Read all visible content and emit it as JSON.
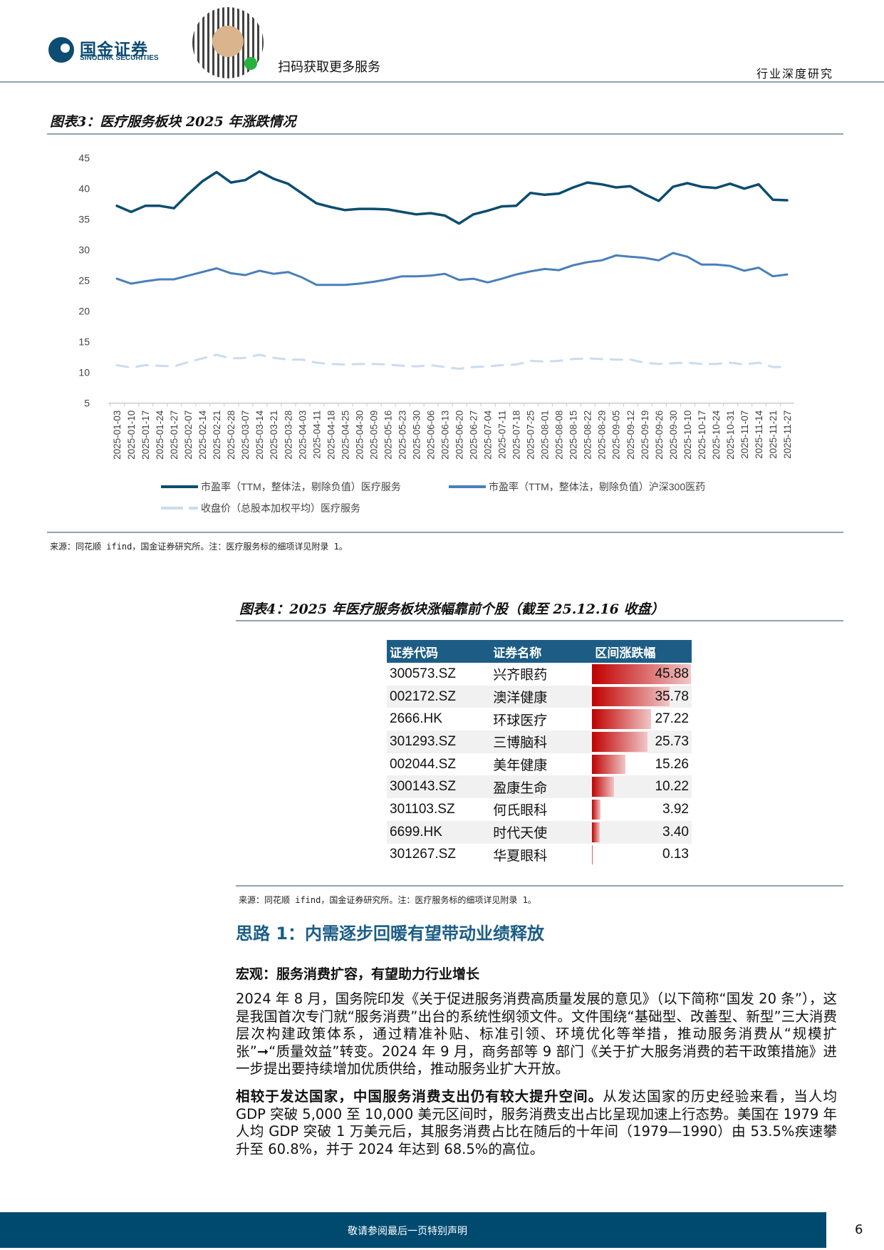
{
  "header": {
    "logo_cn": "国金证券",
    "logo_en": "SINOLINK SECURITIES",
    "scan_text": "扫码获取更多服务",
    "doc_type": "行业深度研究"
  },
  "figure3": {
    "title": "图表3：医疗服务板块 2025 年涨跌情况",
    "source": "来源：同花顺 ifind，国金证券研究所。注：医疗服务标的细项详见附录 1。",
    "chart_data": {
      "type": "line",
      "title": "",
      "ylim": [
        5,
        45
      ],
      "yticks": [
        5,
        10,
        15,
        20,
        25,
        30,
        35,
        40,
        45
      ],
      "legend": "bottom",
      "grid": false,
      "x": [
        "2025-01-03",
        "2025-01-10",
        "2025-01-17",
        "2025-01-24",
        "2025-01-27",
        "2025-02-07",
        "2025-02-14",
        "2025-02-21",
        "2025-02-28",
        "2025-03-07",
        "2025-03-14",
        "2025-03-21",
        "2025-03-28",
        "2025-04-03",
        "2025-04-11",
        "2025-04-18",
        "2025-04-25",
        "2025-04-30",
        "2025-05-09",
        "2025-05-16",
        "2025-05-23",
        "2025-05-30",
        "2025-06-06",
        "2025-06-13",
        "2025-06-20",
        "2025-06-27",
        "2025-07-04",
        "2025-07-11",
        "2025-07-18",
        "2025-07-25",
        "2025-08-01",
        "2025-08-08",
        "2025-08-15",
        "2025-08-22",
        "2025-08-29",
        "2025-09-05",
        "2025-09-12",
        "2025-09-19",
        "2025-09-26",
        "2025-09-30",
        "2025-10-10",
        "2025-10-17",
        "2025-10-24",
        "2025-10-31",
        "2025-11-07",
        "2025-11-14",
        "2025-11-21",
        "2025-11-27"
      ],
      "series": [
        {
          "name": "市盈率（TTM，整体法，剔除负值）医疗服务",
          "color": "#0b4d70",
          "dash": false,
          "values": [
            37.2,
            36.2,
            37.2,
            37.2,
            36.8,
            39.1,
            41.2,
            42.7,
            41.0,
            41.4,
            42.8,
            41.6,
            40.8,
            39.2,
            37.6,
            37.0,
            36.5,
            36.7,
            36.7,
            36.6,
            36.2,
            35.8,
            36.0,
            35.6,
            34.3,
            35.8,
            36.4,
            37.1,
            37.2,
            39.3,
            39.0,
            39.2,
            40.2,
            41.0,
            40.7,
            40.2,
            40.4,
            39.1,
            38.0,
            40.3,
            40.9,
            40.3,
            40.1,
            40.8,
            40.0,
            40.7,
            38.2,
            38.1
          ]
        },
        {
          "name": "市盈率（TTM，整体法，剔除负值）沪深300医药",
          "color": "#4a7fba",
          "dash": false,
          "values": [
            25.3,
            24.5,
            24.9,
            25.2,
            25.2,
            25.8,
            26.4,
            27.0,
            26.2,
            25.9,
            26.6,
            26.1,
            26.4,
            25.5,
            24.3,
            24.3,
            24.3,
            24.5,
            24.8,
            25.2,
            25.7,
            25.7,
            25.8,
            26.1,
            25.1,
            25.3,
            24.7,
            25.3,
            26.0,
            26.5,
            26.9,
            26.7,
            27.5,
            28.0,
            28.3,
            29.1,
            28.9,
            28.7,
            28.3,
            29.5,
            28.9,
            27.6,
            27.6,
            27.4,
            26.6,
            27.1,
            25.7,
            26.0
          ]
        },
        {
          "name": "收盘价（总股本加权平均）医疗服务",
          "color": "#cadcf0",
          "dash": true,
          "values": [
            11.2,
            10.8,
            11.2,
            11.1,
            11.0,
            11.7,
            12.3,
            12.9,
            12.3,
            12.4,
            12.9,
            12.4,
            12.1,
            12.1,
            11.6,
            11.4,
            11.3,
            11.4,
            11.4,
            11.3,
            11.1,
            11.0,
            11.2,
            10.9,
            10.6,
            10.9,
            11.0,
            11.2,
            11.3,
            11.9,
            11.8,
            11.9,
            12.2,
            12.3,
            12.2,
            12.1,
            12.1,
            11.6,
            11.4,
            11.5,
            11.6,
            11.4,
            11.4,
            11.6,
            11.3,
            11.6,
            10.9,
            10.9
          ]
        }
      ]
    }
  },
  "figure4": {
    "title": "图表4：2025 年医疗服务板块涨幅靠前个股（截至 25.12.16 收盘）",
    "columns": [
      "证券代码",
      "证券名称",
      "区间涨跌幅"
    ],
    "bar_color": "#c00000",
    "rows": [
      {
        "code": "300573.SZ",
        "name": "兴齐眼药",
        "change": 45.88,
        "change_text": "45.88"
      },
      {
        "code": "002172.SZ",
        "name": "澳洋健康",
        "change": 35.78,
        "change_text": "35.78"
      },
      {
        "code": "2666.HK",
        "name": "环球医疗",
        "change": 27.22,
        "change_text": "27.22"
      },
      {
        "code": "301293.SZ",
        "name": "三博脑科",
        "change": 25.73,
        "change_text": "25.73"
      },
      {
        "code": "002044.SZ",
        "name": "美年健康",
        "change": 15.26,
        "change_text": "15.26"
      },
      {
        "code": "300143.SZ",
        "name": "盈康生命",
        "change": 10.22,
        "change_text": "10.22"
      },
      {
        "code": "301103.SZ",
        "name": "何氏眼科",
        "change": 3.92,
        "change_text": "3.92"
      },
      {
        "code": "6699.HK",
        "name": "时代天使",
        "change": 3.4,
        "change_text": "3.40"
      },
      {
        "code": "301267.SZ",
        "name": "华夏眼科",
        "change": 0.13,
        "change_text": "0.13"
      }
    ],
    "source": "来源：同花顺 ifind，国金证券研究所。注：医疗服务标的细项详见附录 1。"
  },
  "section": {
    "heading": "思路 1：内需逐步回暖有望带动业绩释放",
    "subheading": "宏观：服务消费扩容，有望助力行业增长",
    "para1": "2024 年 8 月，国务院印发《关于促进服务消费高质量发展的意见》（以下简称“国发 20 条”），这是我国首次专门就“服务消费”出台的系统性纲领文件。文件围绕“基础型、改善型、新型”三大消费层次构建政策体系，通过精准补贴、标准引领、环境优化等举措，推动服务消费从“规模扩张”➞“质量效益”转变。2024 年 9 月，商务部等 9 部门《关于扩大服务消费的若干政策措施》进一步提出要持续增加优质供给，推动服务业扩大开放。",
    "para2_bold": "相较于发达国家，中国服务消费支出仍有较大提升空间。",
    "para2_rest": "从发达国家的历史经验来看，当人均 GDP 突破 5,000 至 10,000 美元区间时，服务消费支出占比呈现加速上行态势。美国在 1979 年人均 GDP 突破 1 万美元后，其服务消费占比在随后的十年间（1979—1990）由 53.5%疾速攀升至 60.8%，并于 2024 年达到 68.5%的高位。"
  },
  "footer": {
    "notice": "敬请参阅最后一页特别声明",
    "page": "6"
  }
}
